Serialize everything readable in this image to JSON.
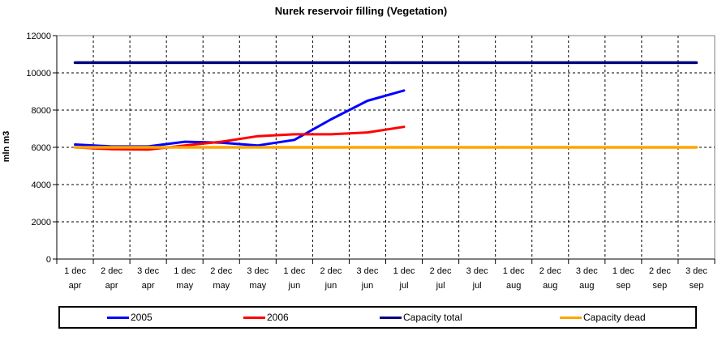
{
  "chart_data": {
    "type": "line",
    "title": "Nurek reservoir filling (Vegetation)",
    "ylabel": "mln m3",
    "xlabel": "",
    "ylim": [
      0,
      12000
    ],
    "ytick_interval": 2000,
    "yticks": [
      0,
      2000,
      4000,
      6000,
      8000,
      10000,
      12000
    ],
    "grid": "black dashed horizontal and vertical gridlines",
    "legend_position": "bottom",
    "plot_border_color": "#808080",
    "axis_color": "#000000",
    "gridline_color": "#000000",
    "categories": [
      [
        "1 dec",
        "apr"
      ],
      [
        "2 dec",
        "apr"
      ],
      [
        "3 dec",
        "apr"
      ],
      [
        "1 dec",
        "may"
      ],
      [
        "2 dec",
        "may"
      ],
      [
        "3 dec",
        "may"
      ],
      [
        "1 dec",
        "jun"
      ],
      [
        "2 dec",
        "jun"
      ],
      [
        "3 dec",
        "jun"
      ],
      [
        "1 dec",
        "jul"
      ],
      [
        "2 dec",
        "jul"
      ],
      [
        "3 dec",
        "jul"
      ],
      [
        "1 dec",
        "aug"
      ],
      [
        "2 dec",
        "aug"
      ],
      [
        "3 dec",
        "aug"
      ],
      [
        "1 dec",
        "sep"
      ],
      [
        "2 dec",
        "sep"
      ],
      [
        "3 dec",
        "sep"
      ]
    ],
    "series": [
      {
        "name": "2005",
        "color": "#0000ff",
        "values": [
          6150,
          6050,
          6050,
          6300,
          6250,
          6100,
          6400,
          7500,
          8500,
          9050,
          null,
          null,
          null,
          null,
          null,
          null,
          null,
          null
        ]
      },
      {
        "name": "2006",
        "color": "#ff0000",
        "values": [
          6000,
          5900,
          5880,
          6100,
          6300,
          6600,
          6700,
          6700,
          6800,
          7100,
          null,
          null,
          null,
          null,
          null,
          null,
          null,
          null
        ]
      },
      {
        "name": "Capacity total",
        "color": "#000080",
        "values": [
          10550,
          10550,
          10550,
          10550,
          10550,
          10550,
          10550,
          10550,
          10550,
          10550,
          10550,
          10550,
          10550,
          10550,
          10550,
          10550,
          10550,
          10550
        ]
      },
      {
        "name": "Capacity dead",
        "color": "#ffa500",
        "values": [
          6000,
          6000,
          6000,
          6000,
          6000,
          6000,
          6000,
          6000,
          6000,
          6000,
          6000,
          6000,
          6000,
          6000,
          6000,
          6000,
          6000,
          6000
        ]
      }
    ]
  }
}
